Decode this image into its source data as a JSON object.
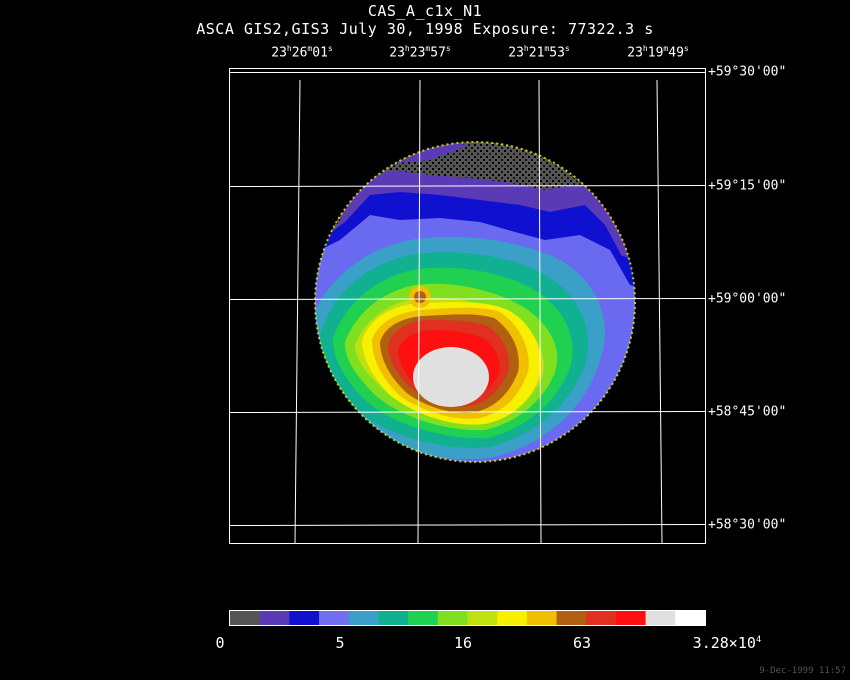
{
  "title": "CAS_A_c1x_N1",
  "subtitle": "ASCA GIS2,GIS3 July 30, 1998 Exposure: 77322.3 s",
  "ra_labels": [
    {
      "h": "23",
      "m": "26",
      "s": "01"
    },
    {
      "h": "23",
      "m": "23",
      "s": "57"
    },
    {
      "h": "23",
      "m": "21",
      "s": "53"
    },
    {
      "h": "23",
      "m": "19",
      "s": "49"
    }
  ],
  "dec_labels": [
    "+59°30'00\"",
    "+59°15'00\"",
    "+59°00'00\"",
    "+58°45'00\"",
    "+58°30'00\""
  ],
  "colorbar": {
    "colors": [
      "#555555",
      "#5a3ab5",
      "#1010d0",
      "#7070f0",
      "#3aa0c8",
      "#10b090",
      "#20d050",
      "#80e020",
      "#c0e010",
      "#f8f000",
      "#f0c000",
      "#b06010",
      "#e03020",
      "#ff1010",
      "#e0e0e0",
      "#ffffff"
    ],
    "labels": [
      "0",
      "5",
      "16",
      "63",
      "3.28×10"
    ],
    "exponent": "4"
  },
  "timestamp": "9-Dec-1999 11:57"
}
